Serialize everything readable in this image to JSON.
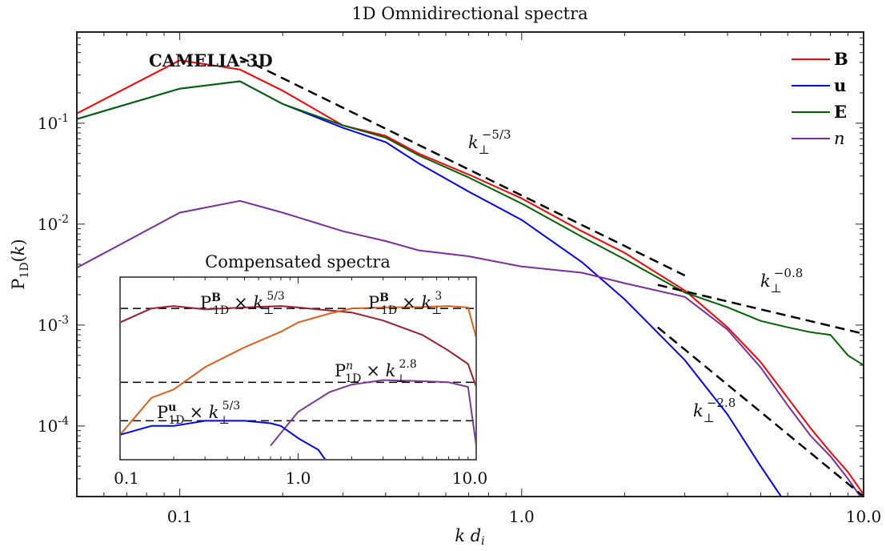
{
  "chart_data": [
    {
      "type": "line",
      "title": "1D Omnidirectional spectra",
      "annotation": "CAMELIA-3D",
      "xlabel": "k d_i",
      "ylabel": "P_1D(k)",
      "xscale": "log",
      "yscale": "log",
      "xlim": [
        0.05,
        10
      ],
      "ylim": [
        2e-05,
        0.8
      ],
      "xticks": [
        0.1,
        1.0,
        10.0
      ],
      "xtick_labels": [
        "0.1",
        "1.0",
        "10.0"
      ],
      "yticks": [
        0.0001,
        0.001,
        0.01,
        0.1
      ],
      "ytick_labels": [
        "10-4",
        "10-3",
        "10-2",
        "10-1"
      ],
      "grid": false,
      "legend_position": "top-right",
      "series": [
        {
          "name": "B",
          "color": "#ff0000",
          "x": [
            0.05,
            0.1,
            0.15,
            0.2,
            0.3,
            0.4,
            0.5,
            0.7,
            1.0,
            1.5,
            2.0,
            3.0,
            4.0,
            5.0,
            6.0,
            7.0,
            8.0,
            9.0,
            10.0
          ],
          "y": [
            0.125,
            0.42,
            0.34,
            0.21,
            0.095,
            0.075,
            0.05,
            0.031,
            0.018,
            0.0085,
            0.0052,
            0.0022,
            0.00095,
            0.00043,
            0.00019,
            9.5e-05,
            5.5e-05,
            3.5e-05,
            2.1e-05
          ]
        },
        {
          "name": "u",
          "color": "#0000ff",
          "x": [
            0.05,
            0.1,
            0.15,
            0.2,
            0.3,
            0.4,
            0.5,
            0.7,
            1.0,
            1.5,
            2.0,
            3.0,
            4.0,
            5.0,
            6.0
          ],
          "y": [
            0.11,
            0.22,
            0.26,
            0.155,
            0.09,
            0.065,
            0.04,
            0.021,
            0.011,
            0.0042,
            0.0018,
            0.00045,
            0.00013,
            4e-05,
            1.6e-05
          ]
        },
        {
          "name": "E",
          "color": "#006400",
          "x": [
            0.05,
            0.1,
            0.15,
            0.2,
            0.3,
            0.4,
            0.5,
            0.7,
            1.0,
            1.5,
            2.0,
            3.0,
            4.0,
            5.0,
            6.0,
            7.0,
            8.0,
            9.0,
            10.0
          ],
          "y": [
            0.11,
            0.22,
            0.26,
            0.155,
            0.095,
            0.072,
            0.048,
            0.029,
            0.016,
            0.0075,
            0.0045,
            0.0021,
            0.0015,
            0.0011,
            0.00095,
            0.00085,
            0.0008,
            0.0005,
            0.0004
          ]
        },
        {
          "name": "n",
          "color": "#7b2c9e",
          "x": [
            0.05,
            0.1,
            0.15,
            0.2,
            0.3,
            0.4,
            0.5,
            0.7,
            1.0,
            1.5,
            2.0,
            3.0,
            4.0,
            5.0,
            6.0,
            7.0,
            8.0,
            9.0,
            10.0
          ],
          "y": [
            0.0037,
            0.013,
            0.017,
            0.013,
            0.0085,
            0.0068,
            0.0055,
            0.0048,
            0.0038,
            0.0033,
            0.0026,
            0.0019,
            0.0009,
            0.00038,
            0.00016,
            8e-05,
            5e-05,
            3e-05,
            1.8e-05
          ]
        }
      ],
      "reference_lines": [
        {
          "label": "k_⊥^{-5/3}",
          "base": "k_⊥",
          "exp": "−5/3",
          "x": [
            0.15,
            3.0
          ],
          "y": [
            0.45,
            0.0031
          ]
        },
        {
          "label": "k_⊥^{-0.8}",
          "base": "k_⊥",
          "exp": "−0.8",
          "x": [
            2.5,
            10.0
          ],
          "y": [
            0.0025,
            0.00082
          ]
        },
        {
          "label": "k_⊥^{-2.8}",
          "base": "k_⊥",
          "exp": "−2.8",
          "x": [
            2.5,
            10.0
          ],
          "y": [
            0.00095,
            2e-05
          ]
        }
      ]
    },
    {
      "type": "line",
      "title": "Compensated spectra",
      "xscale": "log",
      "yscale": "log",
      "xlim": [
        0.1,
        10
      ],
      "xticks": [
        0.1,
        1.0,
        10.0
      ],
      "xtick_labels": [
        "0.1",
        "1.0",
        "10.0"
      ],
      "reference_levels": [
        1.0,
        0.22,
        0.1
      ],
      "series": [
        {
          "name": "P_1D^B × k_⊥^{5/3}",
          "color": "#a01c2f",
          "x": [
            0.1,
            0.15,
            0.2,
            0.3,
            0.5,
            0.8,
            1.0,
            2.0,
            3.0,
            5.0,
            7.0,
            9.0,
            10.0
          ],
          "y": [
            0.75,
            1.0,
            1.05,
            0.98,
            1.02,
            1.05,
            1.02,
            0.92,
            0.78,
            0.58,
            0.42,
            0.32,
            0.2
          ]
        },
        {
          "name": "P_1D^B × k_⊥^3",
          "color": "#e0601a",
          "x": [
            0.1,
            0.15,
            0.2,
            0.3,
            0.5,
            0.8,
            1.0,
            1.5,
            2.0,
            3.0,
            5.0,
            7.0,
            9.0,
            10.0
          ],
          "y": [
            0.075,
            0.16,
            0.19,
            0.3,
            0.45,
            0.62,
            0.75,
            0.9,
            1.0,
            1.02,
            1.03,
            1.05,
            1.02,
            0.55
          ]
        },
        {
          "name": "P_1D^n × k_⊥^{2.8}",
          "color": "#7b3a96",
          "x": [
            0.7,
            1.0,
            1.5,
            2.0,
            3.0,
            5.0,
            7.0,
            9.0,
            10.0
          ],
          "y": [
            0.06,
            0.12,
            0.18,
            0.21,
            0.23,
            0.225,
            0.22,
            0.2,
            0.06
          ]
        },
        {
          "name": "P_1D^u × k_⊥^{5/3}",
          "color": "#0000ff",
          "x": [
            0.1,
            0.15,
            0.2,
            0.3,
            0.4,
            0.5,
            0.7,
            0.8,
            1.0,
            1.3,
            1.7
          ],
          "y": [
            0.075,
            0.09,
            0.09,
            0.1,
            0.1,
            0.1,
            0.095,
            0.09,
            0.07,
            0.055,
            0.03
          ]
        }
      ]
    }
  ],
  "legend": [
    {
      "label": "B",
      "color": "#ff0000"
    },
    {
      "label": "u",
      "color": "#0000ff"
    },
    {
      "label": "E",
      "color": "#006400"
    },
    {
      "label": "n",
      "color": "#7b2c9e"
    }
  ]
}
